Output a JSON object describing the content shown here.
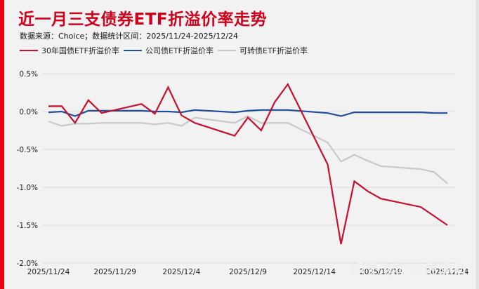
{
  "header": {
    "title": "近一月三支债券ETF折溢价率走势",
    "subtitle": "数据来源：Choice；数据统计区间：2025/11/24-2025/12/24"
  },
  "legend": [
    {
      "label": "30年国债ETF折溢价率",
      "color": "#c8102e"
    },
    {
      "label": "公司债ETF折溢价率",
      "color": "#1f4e9c"
    },
    {
      "label": "可转债ETF折溢价率",
      "color": "#c8c8c8"
    }
  ],
  "watermark": "知乎 @ETF発狐仙",
  "colors": {
    "accent": "#e60012",
    "title": "#d0021b",
    "background": "#f2f2f2",
    "grid": "#dcdcdc"
  },
  "chart_data": {
    "type": "line",
    "title": "近一月三支债券ETF折溢价率走势",
    "subtitle": "数据来源：Choice；数据统计区间：2025/11/24-2025/12/24",
    "xlabel": "",
    "ylabel": "",
    "ylim": [
      -2.0,
      0.5
    ],
    "yticks": [
      0.5,
      0.0,
      -0.5,
      -1.0,
      -1.5,
      -2.0
    ],
    "ytick_labels": [
      "0.5%",
      "0.0%",
      "-0.5%",
      "-1.0%",
      "-1.5%",
      "-2.0%"
    ],
    "xtick_labels": [
      "2025/11/24",
      "2025/11/29",
      "2025/12/4",
      "2025/12/9",
      "2025/12/14",
      "2025/12/19",
      "2025/12/24"
    ],
    "grid": true,
    "legend_position": "top",
    "x": [
      "2025/11/24",
      "2025/11/25",
      "2025/11/26",
      "2025/11/27",
      "2025/11/28",
      "2025/12/1",
      "2025/12/2",
      "2025/12/3",
      "2025/12/4",
      "2025/12/5",
      "2025/12/8",
      "2025/12/9",
      "2025/12/10",
      "2025/12/11",
      "2025/12/12",
      "2025/12/15",
      "2025/12/16",
      "2025/12/17",
      "2025/12/18",
      "2025/12/19",
      "2025/12/22",
      "2025/12/23",
      "2025/12/24"
    ],
    "series": [
      {
        "name": "30年国债ETF折溢价率",
        "color": "#c8102e",
        "values": [
          0.07,
          0.07,
          -0.15,
          0.15,
          -0.02,
          0.1,
          -0.03,
          0.32,
          -0.05,
          -0.15,
          -0.32,
          -0.08,
          -0.25,
          0.12,
          0.36,
          -0.7,
          -1.75,
          -0.92,
          -1.05,
          -1.15,
          -1.26,
          -1.38,
          -1.5
        ]
      },
      {
        "name": "公司债ETF折溢价率",
        "color": "#1f4e9c",
        "values": [
          -0.01,
          0.0,
          -0.06,
          0.01,
          0.01,
          0.01,
          0.0,
          0.0,
          -0.01,
          0.02,
          -0.01,
          0.01,
          0.02,
          0.02,
          0.02,
          -0.02,
          -0.06,
          -0.01,
          -0.01,
          -0.01,
          -0.01,
          -0.02,
          -0.02
        ]
      },
      {
        "name": "可转债ETF折溢价率",
        "color": "#c8c8c8",
        "values": [
          -0.13,
          -0.19,
          -0.16,
          -0.16,
          -0.15,
          -0.15,
          -0.17,
          -0.15,
          -0.19,
          -0.08,
          -0.15,
          -0.06,
          -0.15,
          -0.15,
          -0.15,
          -0.41,
          -0.66,
          -0.57,
          -0.65,
          -0.72,
          -0.76,
          -0.8,
          -0.95
        ]
      }
    ]
  }
}
